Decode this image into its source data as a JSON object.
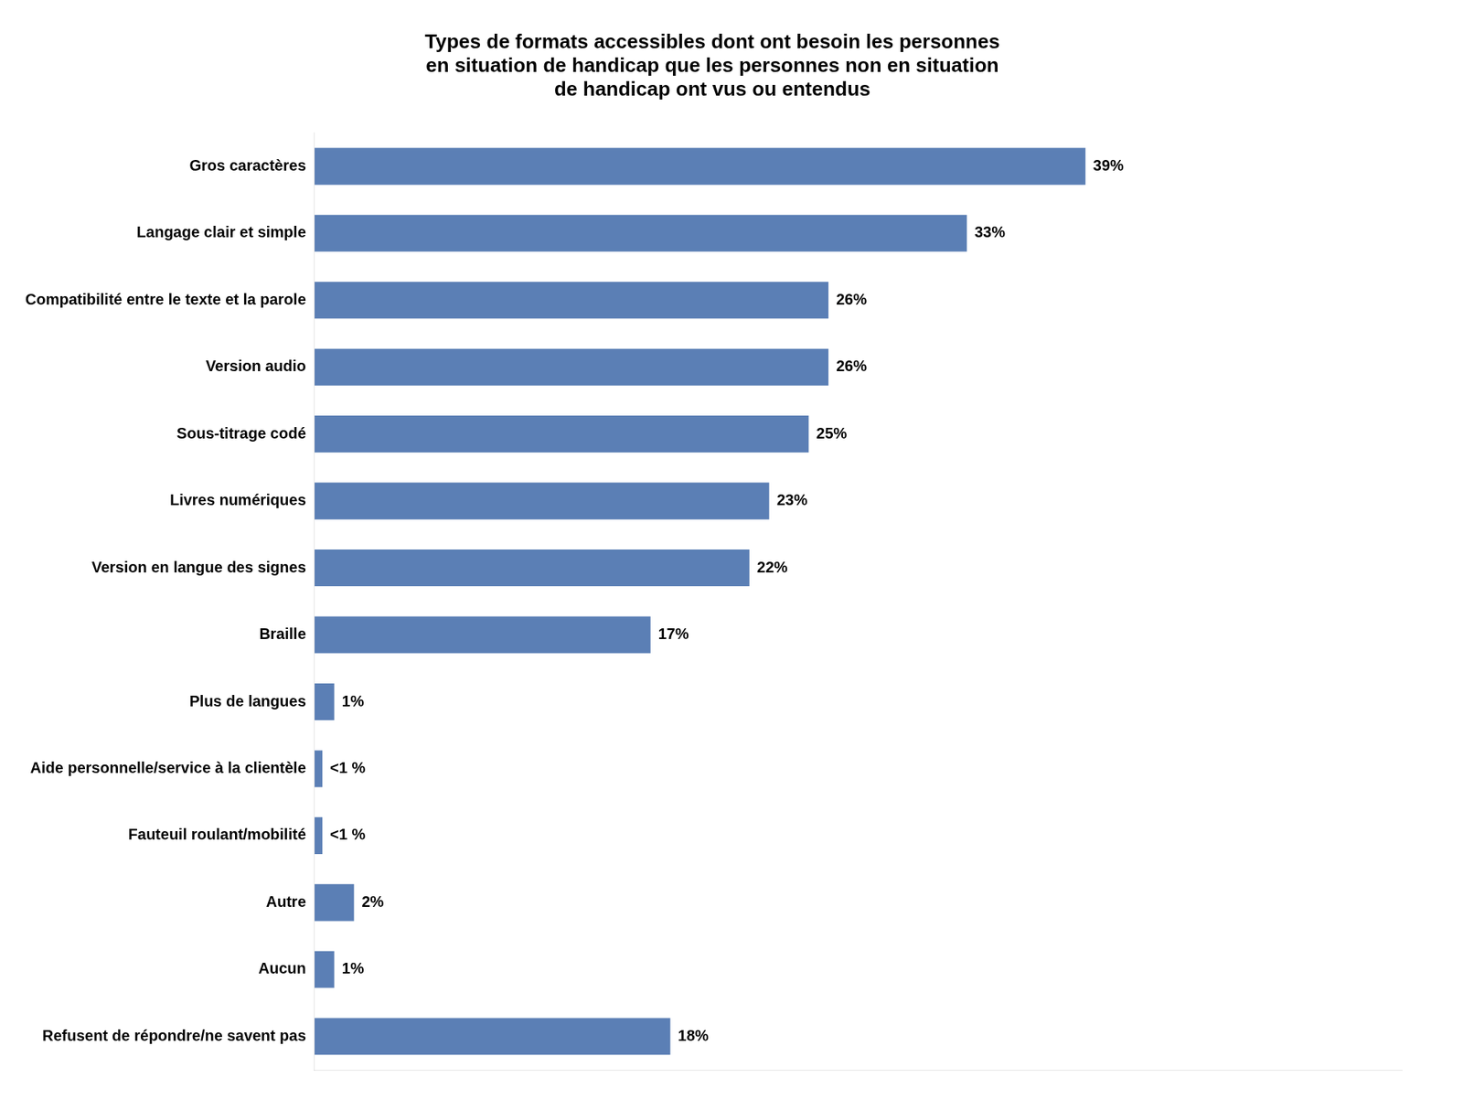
{
  "chart_data": {
    "type": "bar",
    "orientation": "horizontal",
    "title": "Types de formats accessibles dont ont besoin les personnes\nen situation de handicap que les personnes non en situation\nde handicap ont vus ou entendus",
    "categories": [
      "Refusent de répondre/ne savent pas",
      "Aucun",
      "Autre",
      "Fauteuil roulant/mobilité",
      "Aide personnelle/service à la clientèle",
      "Plus de langues",
      "Braille",
      "Version en langue des signes",
      "Livres numériques",
      "Sous-titrage codé",
      "Version audio",
      "Compatibilité entre le texte et la parole",
      "Langage clair et simple",
      "Gros caractères"
    ],
    "values": [
      18,
      1,
      2,
      0.4,
      0.4,
      1,
      17,
      22,
      23,
      25,
      26,
      26,
      33,
      39
    ],
    "value_labels": [
      "18%",
      "1%",
      "2%",
      "<1 %",
      "<1 %",
      "1%",
      "17%",
      "22%",
      "23%",
      "25%",
      "26%",
      "26%",
      "33%",
      "39%"
    ],
    "color": "#5b7fb5",
    "xlim": [
      0,
      55
    ],
    "grid": false,
    "data_labels": true,
    "tick_labels": "y"
  }
}
